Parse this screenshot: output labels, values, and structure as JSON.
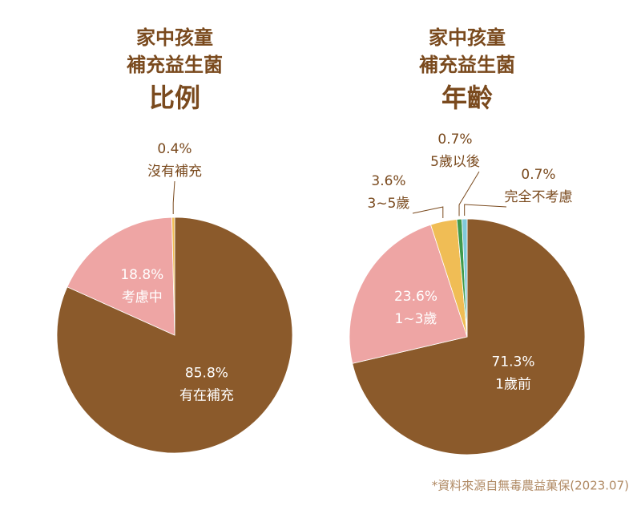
{
  "chart_data": [
    {
      "type": "pie",
      "title": [
        "家中孩童",
        "補充益生菌",
        "比例"
      ],
      "categories": [
        "有在補充",
        "考慮中",
        "沒有補充"
      ],
      "values": [
        85.8,
        18.8,
        0.4
      ],
      "value_labels": [
        "85.8%",
        "18.8%",
        "0.4%"
      ],
      "colors": [
        "#8b5a2b",
        "#eea5a4",
        "#f0bd55"
      ]
    },
    {
      "type": "pie",
      "title": [
        "家中孩童",
        "補充益生菌",
        "年齡"
      ],
      "categories": [
        "1歲前",
        "1~3歲",
        "3~5歲",
        "5歲以後",
        "完全不考慮"
      ],
      "values": [
        71.3,
        23.6,
        3.6,
        0.7,
        0.7
      ],
      "value_labels": [
        "71.3%",
        "23.6%",
        "3.6%",
        "0.7%",
        "0.7%"
      ],
      "colors": [
        "#8b5a2b",
        "#eea5a4",
        "#f0bd55",
        "#3f9a4b",
        "#80c9d9"
      ]
    }
  ],
  "footnote": "*資料來源自無毒農益菓保(2023.07)"
}
